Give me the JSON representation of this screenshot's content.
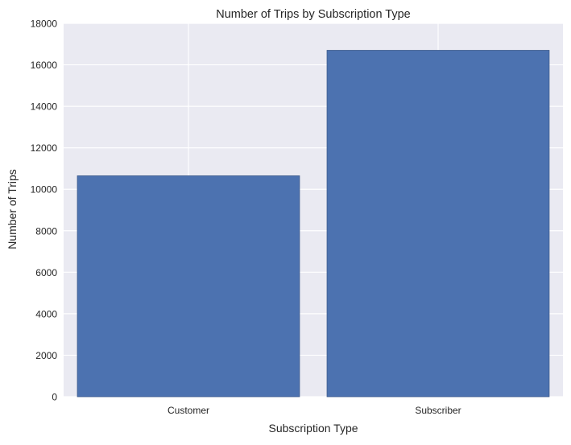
{
  "colors": {
    "plot_background": "#eaeaf2",
    "grid": "#ffffff",
    "bar_fill": "#4c72b0",
    "bar_edge": "#3c5a8c",
    "text": "#262626"
  },
  "chart_data": {
    "type": "bar",
    "title": "Number of Trips by Subscription Type",
    "xlabel": "Subscription Type",
    "ylabel": "Number of Trips",
    "categories": [
      "Customer",
      "Subscriber"
    ],
    "values": [
      10650,
      16700
    ],
    "ylim": [
      0,
      18000
    ],
    "yticks": [
      0,
      2000,
      4000,
      6000,
      8000,
      10000,
      12000,
      14000,
      16000,
      18000
    ],
    "grid": true,
    "legend": "none"
  }
}
